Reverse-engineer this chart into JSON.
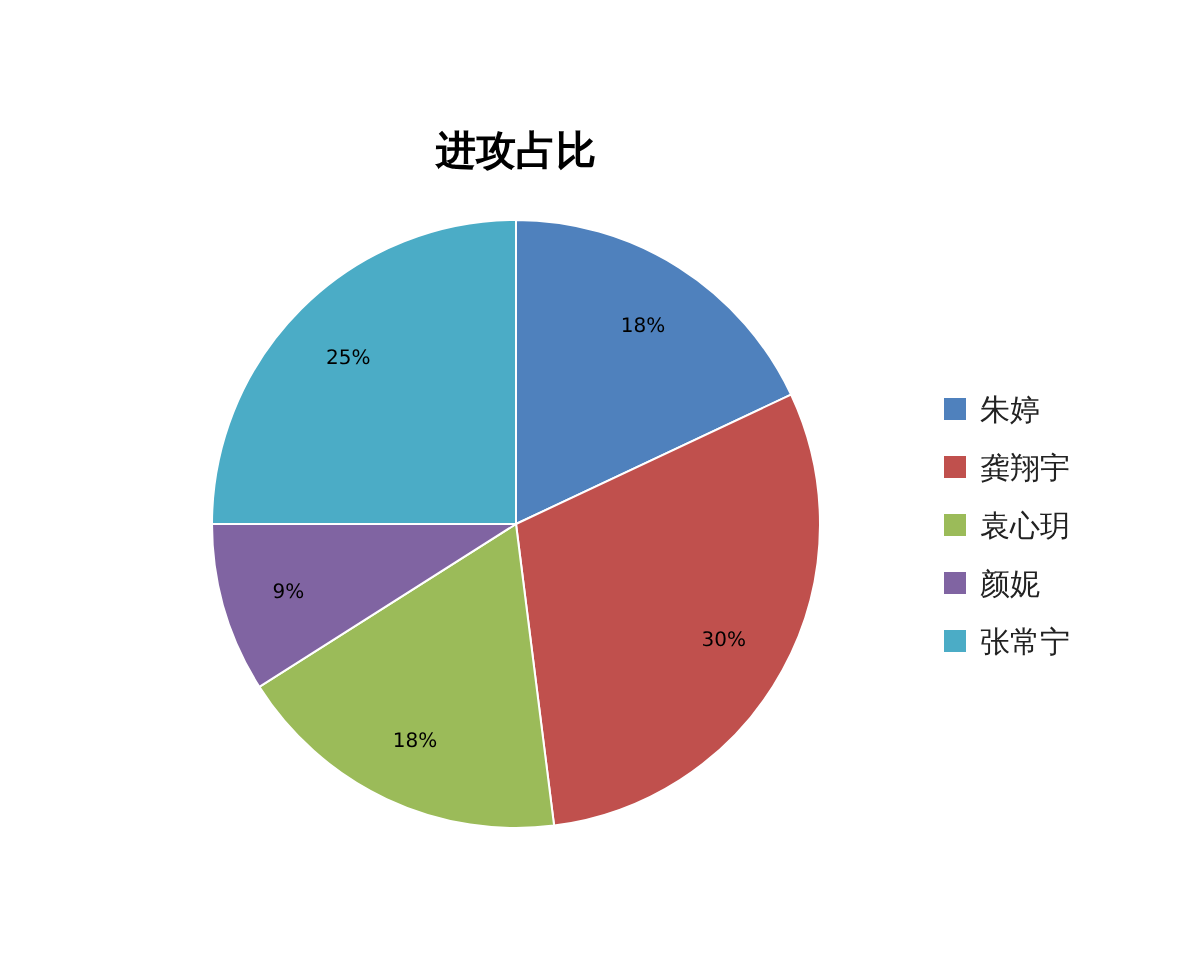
{
  "chart_data": {
    "type": "pie",
    "title": "进攻占比",
    "categories": [
      "朱婷",
      "龚翔宇",
      "袁心玥",
      "颜妮",
      "张常宁"
    ],
    "values": [
      18,
      30,
      18,
      9,
      25
    ],
    "colors": [
      "#4f81bd",
      "#c0504d",
      "#9bbb59",
      "#8064a2",
      "#4bacc6"
    ],
    "value_labels": [
      "18%",
      "30%",
      "18%",
      "9%",
      "25%"
    ],
    "legend": "right"
  }
}
